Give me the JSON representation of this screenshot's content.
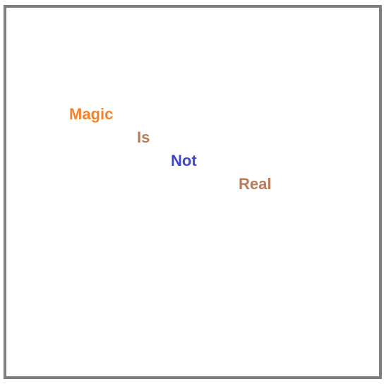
{
  "words": [
    {
      "text": "Magic",
      "color": "#f5822b"
    },
    {
      "text": "Is",
      "color": "#b97a57"
    },
    {
      "text": "Not",
      "color": "#3f48cc"
    },
    {
      "text": "Real",
      "color": "#b97a57"
    }
  ],
  "frame": {
    "border_color": "#7f7f7f",
    "background": "#ffffff"
  }
}
